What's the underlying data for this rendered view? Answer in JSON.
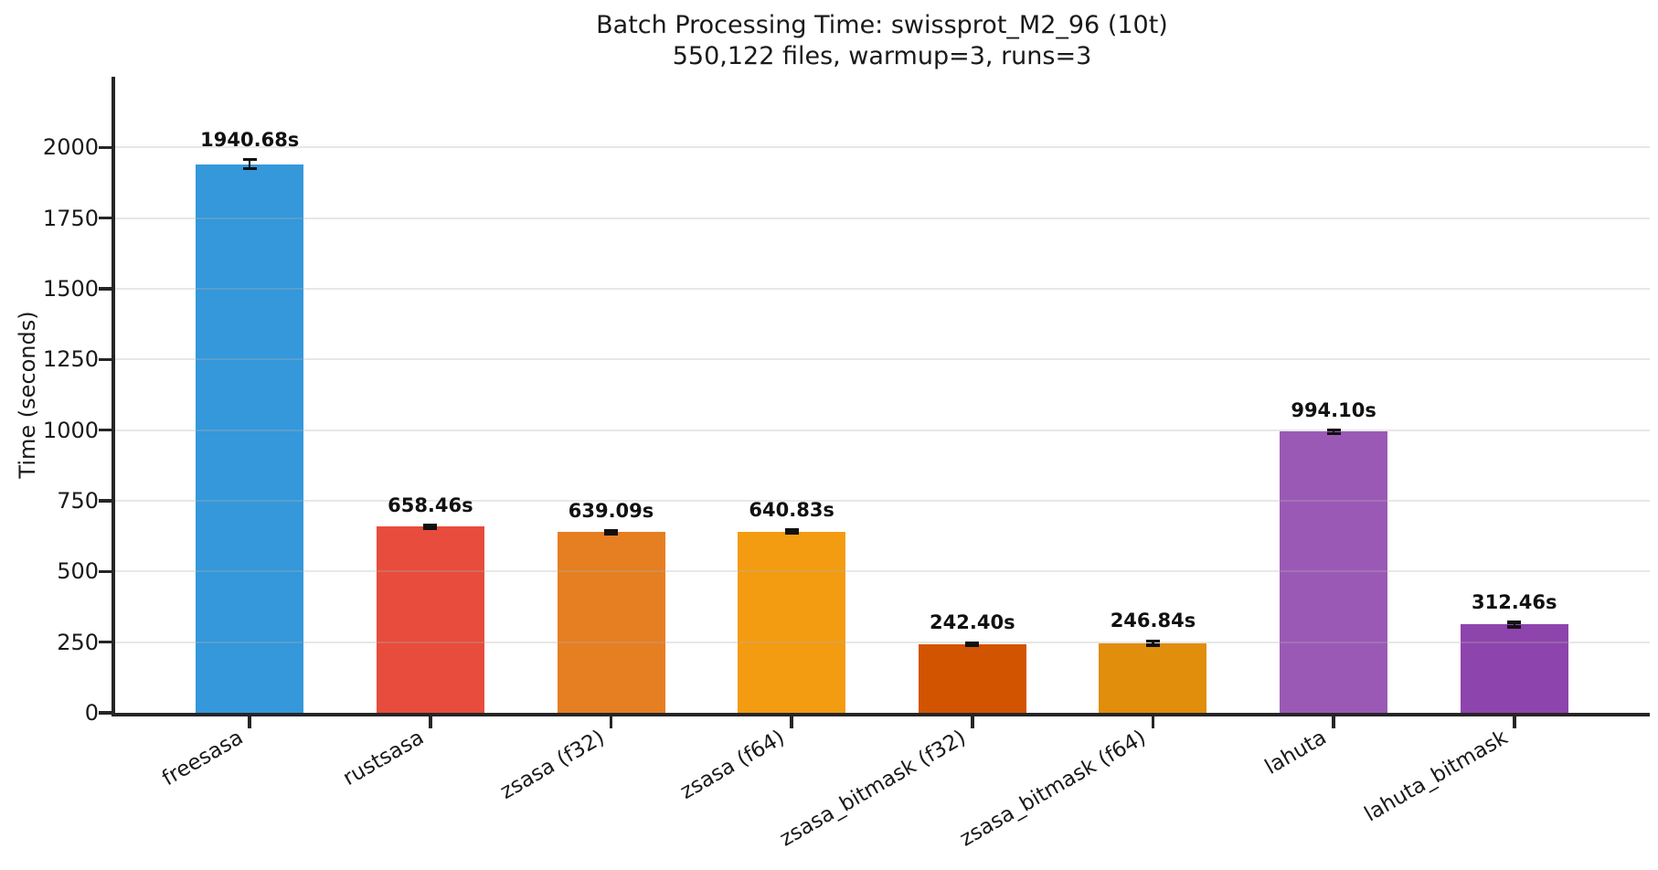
{
  "chart_data": {
    "type": "bar",
    "title": "Batch Processing Time: swissprot_M2_96 (10t)",
    "subtitle": "550,122 files, warmup=3, runs=3",
    "xlabel": "",
    "ylabel": "Time (seconds)",
    "categories": [
      "freesasa",
      "rustsasa",
      "zsasa (f32)",
      "zsasa (f64)",
      "zsasa_bitmask (f32)",
      "zsasa_bitmask (f64)",
      "lahuta",
      "lahuta_bitmask"
    ],
    "values": [
      1940.68,
      658.46,
      639.09,
      640.83,
      242.4,
      246.84,
      994.1,
      312.46
    ],
    "value_labels": [
      "1940.68s",
      "658.46s",
      "639.09s",
      "640.83s",
      "242.40s",
      "246.84s",
      "994.10s",
      "312.46s"
    ],
    "error_bars_seconds": [
      16,
      5,
      5,
      5,
      5,
      7,
      6,
      8
    ],
    "bar_colors": [
      "#3498db",
      "#e74c3c",
      "#e67e22",
      "#f39c12",
      "#d35400",
      "#e08e0b",
      "#9b59b6",
      "#8e44ad"
    ],
    "ylim": [
      0,
      2250
    ],
    "yticks": [
      0,
      250,
      500,
      750,
      1000,
      1250,
      1500,
      1750,
      2000
    ],
    "grid": "horizontal",
    "legend": "none",
    "xtick_rotation_deg": 30,
    "axis_color": "#262626",
    "grid_color": "#e7e7e7",
    "background": "#ffffff"
  }
}
